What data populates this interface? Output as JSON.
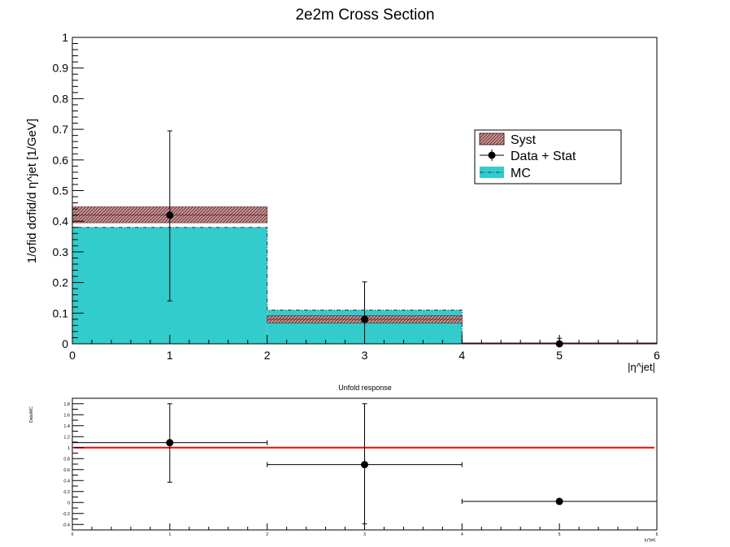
{
  "chart_data": [
    {
      "type": "bar",
      "title": "2e2m Cross Section",
      "xlabel": "|η^jet|",
      "ylabel": "1/σfid dσfid/d η^jet [1/GeV]",
      "xlim": [
        0,
        6
      ],
      "ylim": [
        0,
        1
      ],
      "x_ticks": [
        "0",
        "1",
        "2",
        "3",
        "4",
        "5",
        "6"
      ],
      "y_ticks": [
        "0",
        "0.1",
        "0.2",
        "0.3",
        "0.4",
        "0.5",
        "0.6",
        "0.7",
        "0.8",
        "0.9",
        "1"
      ],
      "grid": false,
      "legend_position": "upper-right",
      "bins": [
        [
          0,
          2
        ],
        [
          2,
          4
        ],
        [
          4,
          6
        ]
      ],
      "series": [
        {
          "name": "MC",
          "kind": "histogram",
          "color": "#33cccc",
          "values": [
            0.38,
            0.11,
            0.0
          ]
        },
        {
          "name": "Syst",
          "kind": "band",
          "color": "#c08080",
          "center": [
            0.42,
            0.08,
            0.0
          ],
          "low": [
            0.395,
            0.068,
            0.0
          ],
          "high": [
            0.447,
            0.092,
            0.0
          ]
        },
        {
          "name": "Data + Stat",
          "kind": "points",
          "color": "#000000",
          "x": [
            1,
            3,
            5
          ],
          "y": [
            0.42,
            0.08,
            0.0
          ],
          "err_low": [
            0.28,
            0.08,
            0.0
          ],
          "err_high": [
            0.275,
            0.122,
            0.018
          ]
        }
      ]
    },
    {
      "type": "scatter",
      "title": "Unfold response",
      "xlabel": "|η^jet|",
      "ylabel": "Data/MC",
      "xlim": [
        0,
        6
      ],
      "ylim": [
        -0.5,
        1.9
      ],
      "x_ticks": [
        "0",
        "1",
        "2",
        "3",
        "4",
        "5",
        "6"
      ],
      "y_ticks": [
        "-0.4",
        "-0.2",
        "0",
        "0.2",
        "0.4",
        "0.6",
        "0.8",
        "1",
        "1.2",
        "1.4",
        "1.6",
        "1.8"
      ],
      "reference_line": {
        "y": 1,
        "color": "#ff0000"
      },
      "series": [
        {
          "name": "",
          "color": "#000000",
          "x": [
            1,
            3,
            5
          ],
          "y": [
            1.09,
            0.69,
            0.02
          ],
          "x_low": [
            0,
            2,
            4
          ],
          "x_high": [
            2,
            4,
            6
          ],
          "y_low": [
            0.37,
            -0.39,
            0.02
          ],
          "y_high": [
            1.8,
            1.8,
            0.02
          ]
        }
      ]
    }
  ]
}
